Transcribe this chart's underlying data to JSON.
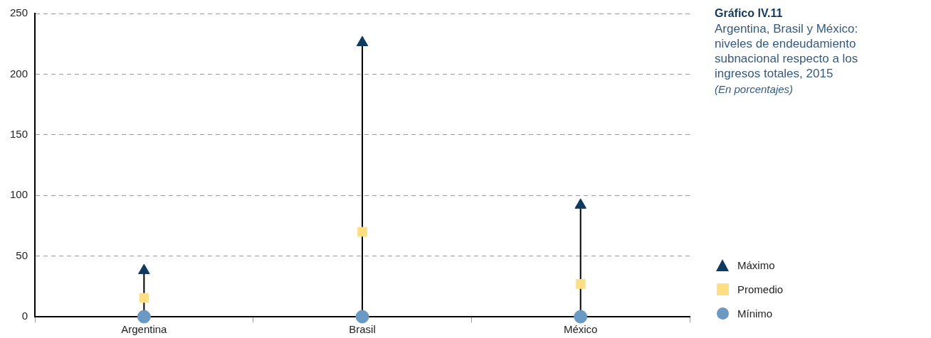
{
  "chart_data": {
    "type": "scatter",
    "title": "Gráfico IV.11",
    "subtitle": "Argentina, Brasil y México: niveles de endeudamiento subnacional respecto a los ingresos totales, 2015",
    "annotations": [
      "(En porcentajes)"
    ],
    "categories": [
      "Argentina",
      "Brasil",
      "México"
    ],
    "series": [
      {
        "name": "Máximo",
        "type": "lollipop",
        "marker": "triangle",
        "color": "#0f3a5f",
        "values": [
          38,
          226,
          92
        ]
      },
      {
        "name": "Promedio",
        "type": "scatter",
        "marker": "square",
        "color": "#fedf83",
        "values": [
          15.5,
          70,
          27
        ]
      },
      {
        "name": "Mínimo",
        "type": "scatter",
        "marker": "circle",
        "color": "#6a9ac4",
        "values": [
          0,
          0,
          0
        ]
      }
    ],
    "ylim": [
      0,
      250
    ],
    "yticks": [
      0,
      50,
      100,
      150,
      200,
      250
    ],
    "grid": "y",
    "legend": "bottom right"
  }
}
